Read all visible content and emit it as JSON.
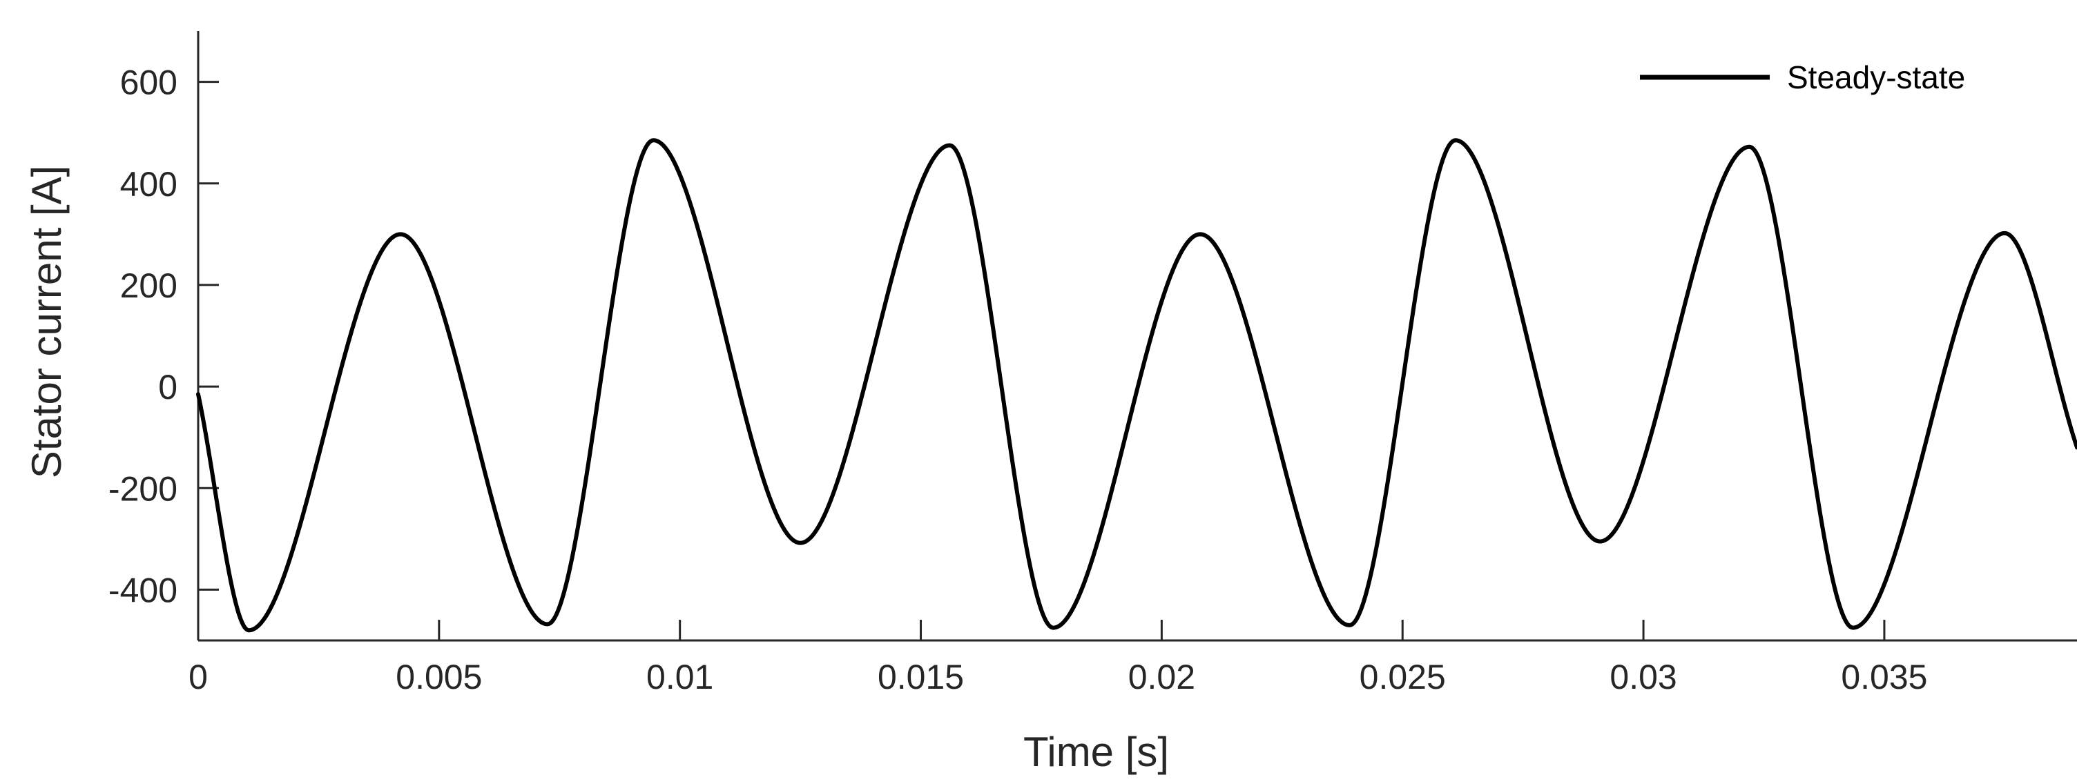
{
  "chart_data": {
    "type": "line",
    "title": "",
    "xlabel": "Time [s]",
    "ylabel": "Stator current [A]",
    "xlim": [
      0,
      0.039
    ],
    "ylim": [
      -500,
      700
    ],
    "xticks": [
      0,
      0.005,
      0.01,
      0.015,
      0.02,
      0.025,
      0.03,
      0.035
    ],
    "xtick_labels": [
      "0",
      "0.005",
      "0.01",
      "0.015",
      "0.02",
      "0.025",
      "0.03",
      "0.035"
    ],
    "yticks": [
      -400,
      -200,
      0,
      200,
      400,
      600
    ],
    "ytick_labels": [
      "-400",
      "-200",
      "0",
      "200",
      "400",
      "600"
    ],
    "grid": false,
    "legend_position": "top-right",
    "series": [
      {
        "name": "Steady-state",
        "color": "#000000",
        "x": [
          0,
          0.00105,
          0.0042,
          0.00725,
          0.00945,
          0.0125,
          0.0156,
          0.01775,
          0.0208,
          0.0239,
          0.0261,
          0.0291,
          0.0322,
          0.03435,
          0.0375,
          0.039
        ],
        "y": [
          -15,
          -480,
          300,
          -468,
          485,
          -308,
          475,
          -475,
          300,
          -470,
          485,
          -305,
          472,
          -475,
          302,
          -120
        ]
      }
    ]
  }
}
